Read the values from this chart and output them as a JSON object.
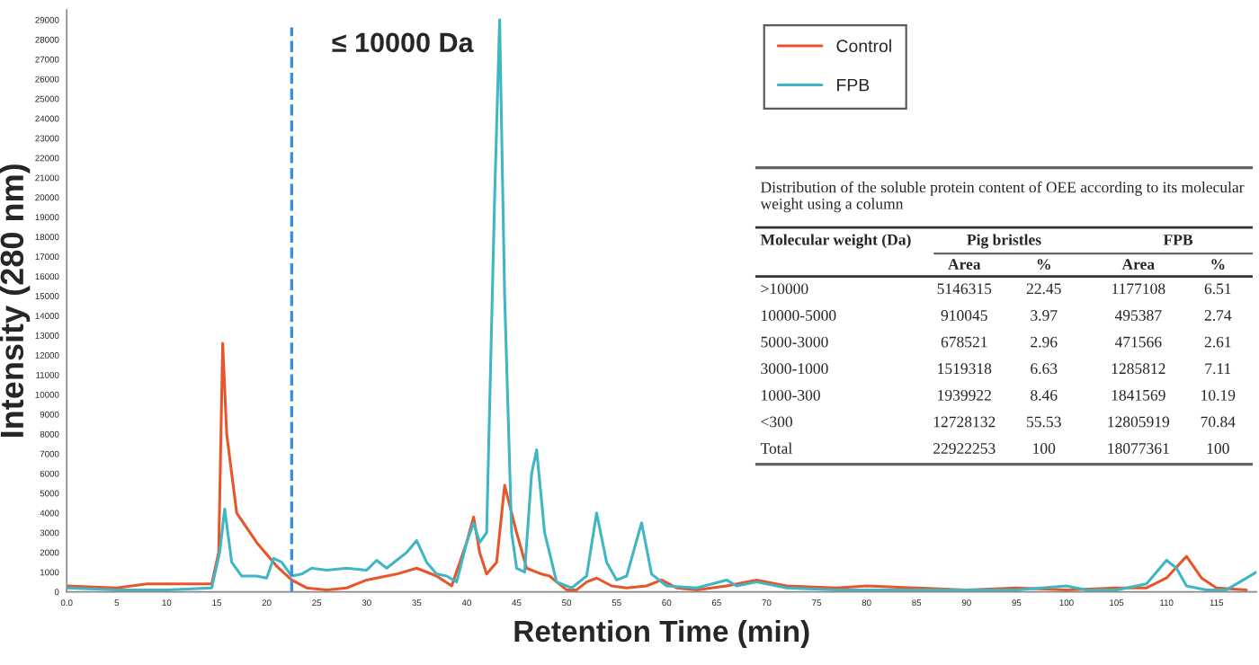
{
  "chart_data": [
    {
      "type": "line",
      "xlabel": "Retention Time (min)",
      "ylabel": "Intensity (280 nm)",
      "xlim": [
        0,
        119
      ],
      "ylim": [
        0,
        29500
      ],
      "xticks": [
        {
          "value": 0,
          "label": "0.0"
        },
        5,
        10,
        15,
        20,
        25,
        30,
        35,
        40,
        45,
        50,
        55,
        60,
        65,
        70,
        75,
        80,
        85,
        90,
        95,
        100,
        105,
        110,
        115
      ],
      "yticks": [
        0,
        1000,
        2000,
        3000,
        4000,
        5000,
        6000,
        7000,
        8000,
        9000,
        10000,
        11000,
        12000,
        13000,
        14000,
        15000,
        16000,
        17000,
        18000,
        19000,
        20000,
        21000,
        22000,
        23000,
        24000,
        25000,
        26000,
        27000,
        28000,
        29000
      ],
      "grid": false,
      "legend": "top right",
      "line_style": "solid",
      "ref_lines": [
        {
          "axis": "x",
          "value": 22.5,
          "label": "≤ 10000 Da",
          "color": "#3a8ee6",
          "line_style": "dashed"
        }
      ],
      "series": [
        {
          "name": "Control",
          "color": "#e8552a",
          "x": [
            0,
            5,
            8,
            12,
            14.5,
            15.2,
            15.6,
            16,
            17,
            19,
            21,
            22.5,
            24,
            26,
            28,
            30,
            33,
            35,
            37,
            38.5,
            40,
            40.7,
            41.3,
            42,
            43,
            43.8,
            45,
            46,
            47.5,
            48.3,
            49,
            50,
            51,
            52,
            53,
            54.5,
            56,
            58,
            59.5,
            61,
            63,
            66,
            69,
            72,
            77,
            80,
            85,
            90,
            95,
            100,
            105,
            108,
            110,
            112,
            113.5,
            115,
            118
          ],
          "values": [
            300,
            200,
            400,
            400,
            400,
            2000,
            12600,
            8000,
            4000,
            2500,
            1300,
            600,
            200,
            100,
            200,
            600,
            900,
            1200,
            800,
            300,
            2500,
            3800,
            2000,
            900,
            1500,
            5400,
            3000,
            1200,
            900,
            800,
            500,
            100,
            100,
            500,
            700,
            300,
            200,
            300,
            600,
            200,
            100,
            300,
            600,
            300,
            200,
            300,
            200,
            100,
            200,
            100,
            200,
            200,
            700,
            1800,
            700,
            200,
            100
          ]
        },
        {
          "name": "FPB",
          "color": "#3fb6c4",
          "x": [
            0,
            5,
            10,
            14.5,
            15.3,
            15.8,
            16.5,
            17.5,
            19,
            20,
            20.7,
            21.5,
            22.5,
            23.5,
            24.5,
            26,
            28,
            30,
            31,
            32,
            34,
            35,
            36,
            37,
            38,
            39,
            40,
            40.7,
            41.3,
            42,
            42.8,
            43.3,
            43.8,
            44.5,
            45,
            45.8,
            46.5,
            47,
            47.8,
            49,
            50.5,
            52,
            53,
            54,
            55,
            56,
            57.5,
            58.5,
            60,
            63,
            66,
            67,
            69,
            72,
            77,
            80,
            85,
            90,
            95,
            100,
            102,
            105,
            108,
            110,
            111,
            112,
            114,
            116,
            119
          ],
          "values": [
            200,
            100,
            100,
            200,
            2000,
            4200,
            1500,
            800,
            800,
            700,
            1700,
            1500,
            800,
            900,
            1200,
            1100,
            1200,
            1100,
            1600,
            1200,
            2000,
            2600,
            1500,
            900,
            800,
            500,
            2500,
            3500,
            2500,
            3000,
            20000,
            29000,
            15000,
            3000,
            1200,
            1000,
            6000,
            7200,
            3000,
            500,
            200,
            800,
            4000,
            1500,
            600,
            800,
            3500,
            900,
            300,
            200,
            600,
            300,
            500,
            200,
            100,
            100,
            100,
            100,
            100,
            300,
            100,
            100,
            400,
            1600,
            1200,
            300,
            100,
            100,
            1000
          ]
        }
      ]
    },
    {
      "type": "other",
      "title": "Distribution of the soluble protein content of OEE according to its molecular weight using a column",
      "annotations": [
        "Molecular weight (Da)",
        "Pig bristles",
        "FPB",
        "Area",
        "%",
        "Area",
        "%",
        ">10000",
        "5146315",
        "22.45",
        "1177108",
        "6.51",
        "10000-5000",
        "910045",
        "3.97",
        "495387",
        "2.74",
        "5000-3000",
        "678521",
        "2.96",
        "471566",
        "2.61",
        "3000-1000",
        "1519318",
        "6.63",
        "1285812",
        "7.11",
        "1000-300",
        "1939922",
        "8.46",
        "1841569",
        "10.19",
        "<300",
        "12728132",
        "55.53",
        "12805919",
        "70.84",
        "Total",
        "22922253",
        "100",
        "18077361",
        "100"
      ]
    }
  ]
}
